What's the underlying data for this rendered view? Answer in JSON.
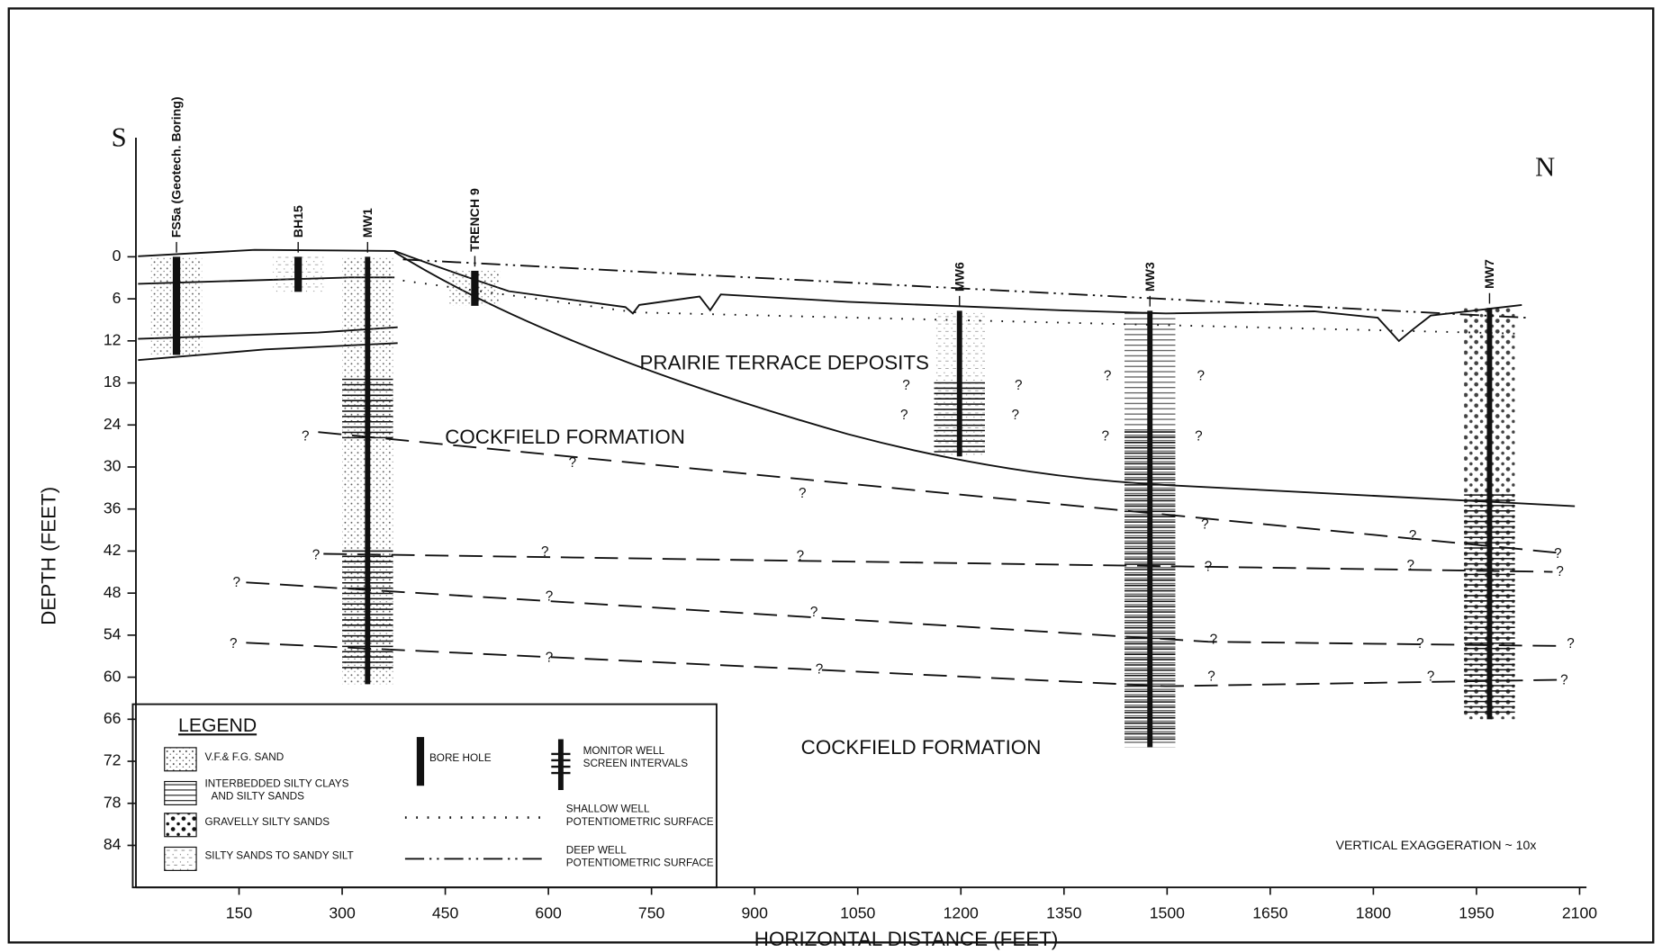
{
  "chart_data": {
    "type": "cross-section",
    "direction_left": "S",
    "direction_right": "N",
    "x_label": "HORIZONTAL DISTANCE (FEET)",
    "y_label": "DEPTH (FEET)",
    "xlim": [
      0,
      2110
    ],
    "ylim": [
      -17,
      90
    ],
    "xticks": [
      150,
      300,
      450,
      600,
      750,
      900,
      1050,
      1200,
      1350,
      1500,
      1650,
      1800,
      1950,
      2100
    ],
    "yticks": [
      0,
      6,
      12,
      18,
      24,
      30,
      36,
      42,
      48,
      54,
      60,
      66,
      72,
      78,
      84
    ],
    "wells": [
      {
        "name": "FS5a (Geotech. Boring)",
        "kind": "bore",
        "x": 59,
        "top": 0,
        "bottom": 14
      },
      {
        "name": "BH15",
        "kind": "bore",
        "x": 236,
        "top": 0,
        "bottom": 5
      },
      {
        "name": "MW1",
        "kind": "monitor",
        "x": 337,
        "top": 0,
        "bottom": 61,
        "screens": [
          [
            17.5,
            26
          ],
          [
            42,
            59
          ]
        ]
      },
      {
        "name": "TRENCH 9",
        "kind": "bore",
        "x": 493,
        "top": 2,
        "bottom": 7
      },
      {
        "name": "MW6",
        "kind": "monitor",
        "x": 1198,
        "top": 7.7,
        "bottom": 28.5,
        "screens": [
          [
            18,
            28
          ]
        ]
      },
      {
        "name": "MW3",
        "kind": "monitor",
        "x": 1475,
        "top": 7.7,
        "bottom": 70,
        "screens": [
          [
            25,
            69
          ]
        ]
      },
      {
        "name": "MW7",
        "kind": "monitor",
        "x": 1969,
        "top": 7.3,
        "bottom": 66,
        "screens": [
          [
            34,
            65
          ]
        ]
      }
    ],
    "query_mark": "?",
    "annotations": [
      "PRAIRIE TERRACE DEPOSITS",
      "COCKFIELD FORMATION",
      "COCKFIELD FORMATION",
      "VERTICAL EXAGGERATION ~ 10x"
    ],
    "legend": {
      "title": "LEGEND",
      "items": [
        [
          "V.F.& F.G. SAND"
        ],
        [
          "INTERBEDDED SILTY CLAYS",
          "AND SILTY SANDS"
        ],
        [
          "GRAVELLY SILTY SANDS"
        ],
        [
          "SILTY SANDS TO SANDY SILT"
        ],
        [
          "BORE HOLE"
        ],
        [
          "MONITOR WELL",
          "SCREEN INTERVALS"
        ],
        [
          "SHALLOW WELL",
          "POTENTIOMETRIC SURFACE"
        ],
        [
          "DEEP WELL",
          "POTENTIOMETRIC SURFACE"
        ]
      ]
    }
  }
}
